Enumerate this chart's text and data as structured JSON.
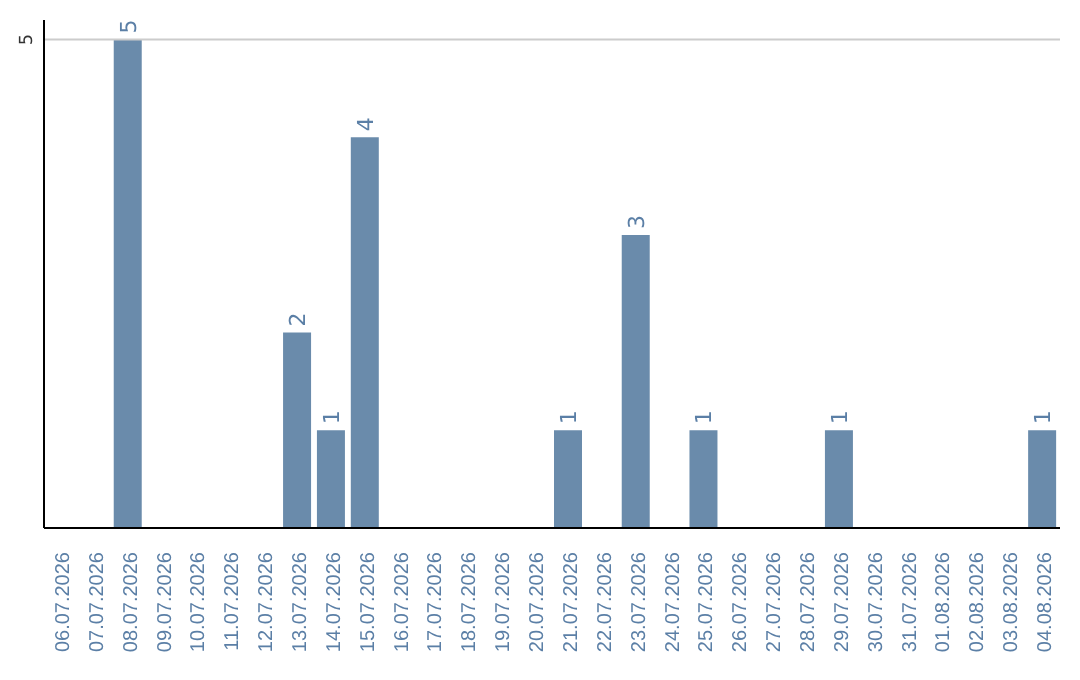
{
  "chart_data": {
    "type": "bar",
    "categories": [
      "06.07.2026",
      "07.07.2026",
      "08.07.2026",
      "09.07.2026",
      "10.07.2026",
      "11.07.2026",
      "12.07.2026",
      "13.07.2026",
      "14.07.2026",
      "15.07.2026",
      "16.07.2026",
      "17.07.2026",
      "18.07.2026",
      "19.07.2026",
      "20.07.2026",
      "21.07.2026",
      "22.07.2026",
      "23.07.2026",
      "24.07.2026",
      "25.07.2026",
      "26.07.2026",
      "27.07.2026",
      "28.07.2026",
      "29.07.2026",
      "30.07.2026",
      "31.07.2026",
      "01.08.2026",
      "02.08.2026",
      "03.08.2026",
      "04.08.2026"
    ],
    "values": [
      0,
      0,
      5,
      0,
      0,
      0,
      0,
      2,
      1,
      4,
      0,
      0,
      0,
      0,
      0,
      1,
      0,
      3,
      0,
      1,
      0,
      0,
      0,
      1,
      0,
      0,
      0,
      0,
      0,
      1
    ],
    "value_labels": [
      null,
      null,
      "5",
      null,
      null,
      null,
      null,
      "2",
      "1",
      "4",
      null,
      null,
      null,
      null,
      null,
      "1",
      null,
      "3",
      null,
      "1",
      null,
      null,
      null,
      "1",
      null,
      null,
      null,
      null,
      null,
      "1"
    ],
    "color": "#6a8bab",
    "ylim": [
      0,
      5.2
    ],
    "yticks": [
      5
    ],
    "grid": "y"
  }
}
